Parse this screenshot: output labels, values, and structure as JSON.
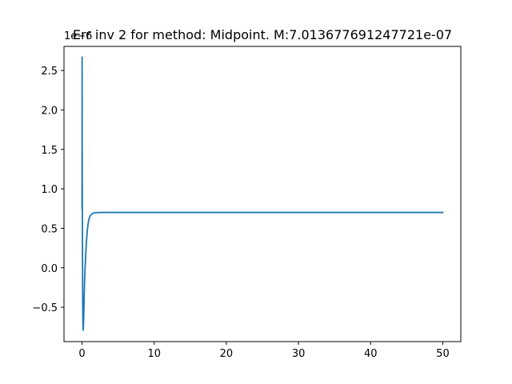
{
  "chart_data": {
    "type": "line",
    "title": "Err inv 2 for method: Midpoint. M:7.013677691247721e-07",
    "xlabel": "",
    "ylabel": "",
    "y_offset_label": "1e−6",
    "xlim": [
      -2.5,
      52.5
    ],
    "ylim": [
      -0.935,
      2.805
    ],
    "x_ticks": [
      0,
      10,
      20,
      30,
      40,
      50
    ],
    "x_tick_labels": [
      "0",
      "10",
      "20",
      "30",
      "40",
      "50"
    ],
    "y_ticks": [
      -0.5,
      0.0,
      0.5,
      1.0,
      1.5,
      2.0,
      2.5
    ],
    "y_tick_labels": [
      "−0.5",
      "0.0",
      "0.5",
      "1.0",
      "1.5",
      "2.0",
      "2.5"
    ],
    "grid": false,
    "legend": "none",
    "series": [
      {
        "color": "#1f77b4",
        "x": [
          0,
          0.01,
          0.02,
          0.04,
          0.06,
          0.08,
          0.1,
          0.15,
          0.2,
          0.25,
          0.3,
          0.35,
          0.4,
          0.5,
          0.6,
          0.7,
          0.8,
          0.9,
          1.0,
          1.2,
          1.4,
          1.6,
          1.8,
          2.0,
          2.5,
          3.0,
          4.0,
          5.0,
          10,
          20,
          30,
          40,
          50
        ],
        "y": [
          0.75,
          2.67,
          1.6,
          0.9,
          0.3,
          -0.2,
          -0.55,
          -0.79,
          -0.72,
          -0.55,
          -0.35,
          -0.18,
          -0.05,
          0.15,
          0.32,
          0.44,
          0.53,
          0.59,
          0.63,
          0.67,
          0.685,
          0.693,
          0.697,
          0.699,
          0.7,
          0.7013,
          0.7014,
          0.7014,
          0.7014,
          0.7014,
          0.7014,
          0.7014,
          0.7014
        ]
      }
    ]
  }
}
